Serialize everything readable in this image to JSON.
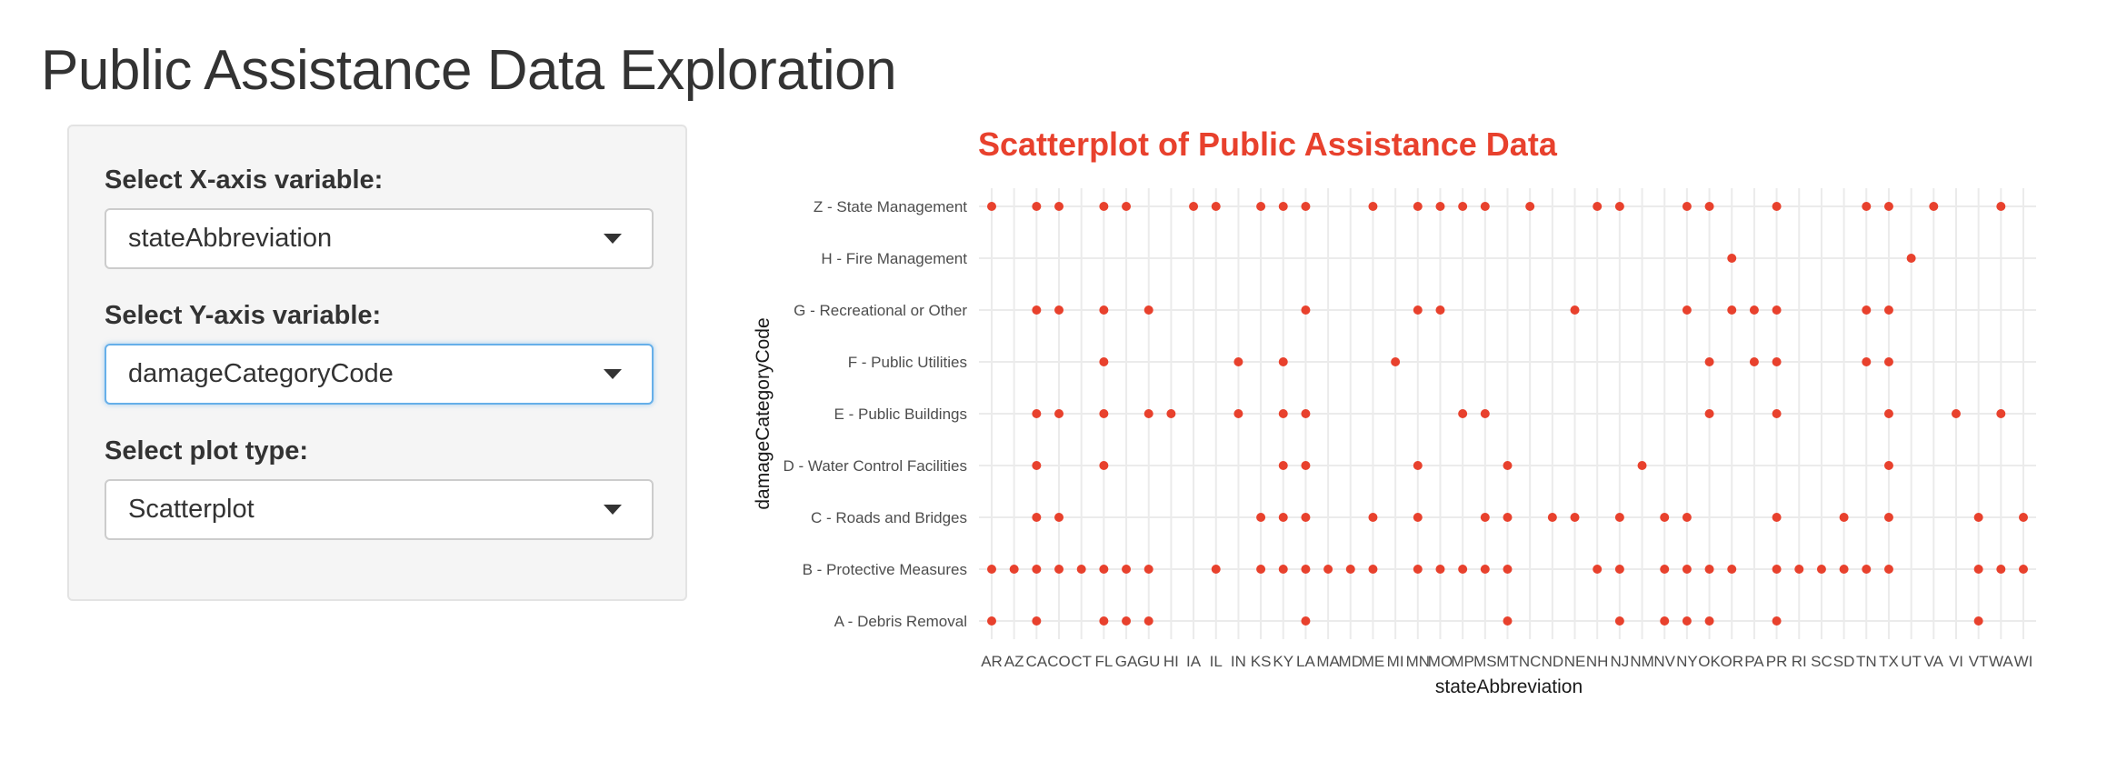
{
  "page": {
    "title": "Public Assistance Data Exploration"
  },
  "sidebar": {
    "x_select": {
      "label": "Select X-axis variable:",
      "value": "stateAbbreviation"
    },
    "y_select": {
      "label": "Select Y-axis variable:",
      "value": "damageCategoryCode"
    },
    "plot_type": {
      "label": "Select plot type:",
      "value": "Scatterplot"
    }
  },
  "colors": {
    "accent": "#e8412d",
    "focus_border": "#66afe9",
    "panel_bg": "#f5f5f5"
  },
  "chart_data": {
    "type": "scatter",
    "title": "Scatterplot of Public Assistance Data",
    "xlabel": "stateAbbreviation",
    "ylabel": "damageCategoryCode",
    "grid": true,
    "x_categories": [
      "AR",
      "AZ",
      "CA",
      "CO",
      "CT",
      "FL",
      "GA",
      "GU",
      "HI",
      "IA",
      "IL",
      "IN",
      "KS",
      "KY",
      "LA",
      "MA",
      "MD",
      "ME",
      "MI",
      "MN",
      "MO",
      "MP",
      "MS",
      "MT",
      "NC",
      "ND",
      "NE",
      "NH",
      "NJ",
      "NM",
      "NV",
      "NY",
      "OK",
      "OR",
      "PA",
      "PR",
      "RI",
      "SC",
      "SD",
      "TN",
      "TX",
      "UT",
      "VA",
      "VI",
      "VT",
      "WA",
      "WI"
    ],
    "x_tick_labels": [
      "AR",
      "AZ",
      "CA",
      "CO",
      "CT",
      "FL",
      "GA",
      "GU",
      "HI",
      "IA",
      "IL",
      "IN",
      "KS",
      "KY",
      "LA",
      "MA",
      "MD",
      "ME",
      "MI",
      "MN",
      "MO",
      "MP",
      "MS",
      "MT",
      "NC",
      "ND",
      "NE",
      "NH",
      "NJ",
      "NM",
      "NV",
      "NY",
      "OK",
      "OR",
      "PA",
      "PR",
      "RI",
      "SC",
      "SD",
      "TN",
      "TX",
      "UT",
      "VA",
      "VI",
      "VT",
      "WA",
      "WI"
    ],
    "y_categories": [
      "A - Debris Removal",
      "B - Protective Measures",
      "C - Roads and Bridges",
      "D - Water Control Facilities",
      "E - Public Buildings",
      "F - Public Utilities",
      "G - Recreational or Other",
      "H - Fire Management",
      "Z - State Management"
    ],
    "point_color": "#e8412d",
    "points": [
      {
        "x": "AR",
        "y": "Z - State Management"
      },
      {
        "x": "CA",
        "y": "Z - State Management"
      },
      {
        "x": "CO",
        "y": "Z - State Management"
      },
      {
        "x": "FL",
        "y": "Z - State Management"
      },
      {
        "x": "GA",
        "y": "Z - State Management"
      },
      {
        "x": "IA",
        "y": "Z - State Management"
      },
      {
        "x": "IL",
        "y": "Z - State Management"
      },
      {
        "x": "KS",
        "y": "Z - State Management"
      },
      {
        "x": "KY",
        "y": "Z - State Management"
      },
      {
        "x": "LA",
        "y": "Z - State Management"
      },
      {
        "x": "ME",
        "y": "Z - State Management"
      },
      {
        "x": "MN",
        "y": "Z - State Management"
      },
      {
        "x": "MO",
        "y": "Z - State Management"
      },
      {
        "x": "MP",
        "y": "Z - State Management"
      },
      {
        "x": "MS",
        "y": "Z - State Management"
      },
      {
        "x": "NC",
        "y": "Z - State Management"
      },
      {
        "x": "NH",
        "y": "Z - State Management"
      },
      {
        "x": "NJ",
        "y": "Z - State Management"
      },
      {
        "x": "NY",
        "y": "Z - State Management"
      },
      {
        "x": "OK",
        "y": "Z - State Management"
      },
      {
        "x": "PR",
        "y": "Z - State Management"
      },
      {
        "x": "TN",
        "y": "Z - State Management"
      },
      {
        "x": "TX",
        "y": "Z - State Management"
      },
      {
        "x": "VA",
        "y": "Z - State Management"
      },
      {
        "x": "WA",
        "y": "Z - State Management"
      },
      {
        "x": "OR",
        "y": "H - Fire Management"
      },
      {
        "x": "UT",
        "y": "H - Fire Management"
      },
      {
        "x": "CA",
        "y": "G - Recreational or Other"
      },
      {
        "x": "CO",
        "y": "G - Recreational or Other"
      },
      {
        "x": "FL",
        "y": "G - Recreational or Other"
      },
      {
        "x": "GU",
        "y": "G - Recreational or Other"
      },
      {
        "x": "LA",
        "y": "G - Recreational or Other"
      },
      {
        "x": "MN",
        "y": "G - Recreational or Other"
      },
      {
        "x": "MO",
        "y": "G - Recreational or Other"
      },
      {
        "x": "NE",
        "y": "G - Recreational or Other"
      },
      {
        "x": "NY",
        "y": "G - Recreational or Other"
      },
      {
        "x": "OR",
        "y": "G - Recreational or Other"
      },
      {
        "x": "PA",
        "y": "G - Recreational or Other"
      },
      {
        "x": "PR",
        "y": "G - Recreational or Other"
      },
      {
        "x": "TN",
        "y": "G - Recreational or Other"
      },
      {
        "x": "TX",
        "y": "G - Recreational or Other"
      },
      {
        "x": "FL",
        "y": "F - Public Utilities"
      },
      {
        "x": "IN",
        "y": "F - Public Utilities"
      },
      {
        "x": "KY",
        "y": "F - Public Utilities"
      },
      {
        "x": "MI",
        "y": "F - Public Utilities"
      },
      {
        "x": "OK",
        "y": "F - Public Utilities"
      },
      {
        "x": "PA",
        "y": "F - Public Utilities"
      },
      {
        "x": "PR",
        "y": "F - Public Utilities"
      },
      {
        "x": "TN",
        "y": "F - Public Utilities"
      },
      {
        "x": "TX",
        "y": "F - Public Utilities"
      },
      {
        "x": "CA",
        "y": "E - Public Buildings"
      },
      {
        "x": "CO",
        "y": "E - Public Buildings"
      },
      {
        "x": "FL",
        "y": "E - Public Buildings"
      },
      {
        "x": "GU",
        "y": "E - Public Buildings"
      },
      {
        "x": "HI",
        "y": "E - Public Buildings"
      },
      {
        "x": "IN",
        "y": "E - Public Buildings"
      },
      {
        "x": "KY",
        "y": "E - Public Buildings"
      },
      {
        "x": "LA",
        "y": "E - Public Buildings"
      },
      {
        "x": "MP",
        "y": "E - Public Buildings"
      },
      {
        "x": "MS",
        "y": "E - Public Buildings"
      },
      {
        "x": "OK",
        "y": "E - Public Buildings"
      },
      {
        "x": "PR",
        "y": "E - Public Buildings"
      },
      {
        "x": "TX",
        "y": "E - Public Buildings"
      },
      {
        "x": "VI",
        "y": "E - Public Buildings"
      },
      {
        "x": "WA",
        "y": "E - Public Buildings"
      },
      {
        "x": "CA",
        "y": "D - Water Control Facilities"
      },
      {
        "x": "FL",
        "y": "D - Water Control Facilities"
      },
      {
        "x": "KY",
        "y": "D - Water Control Facilities"
      },
      {
        "x": "LA",
        "y": "D - Water Control Facilities"
      },
      {
        "x": "MN",
        "y": "D - Water Control Facilities"
      },
      {
        "x": "MT",
        "y": "D - Water Control Facilities"
      },
      {
        "x": "NM",
        "y": "D - Water Control Facilities"
      },
      {
        "x": "TX",
        "y": "D - Water Control Facilities"
      },
      {
        "x": "CA",
        "y": "C - Roads and Bridges"
      },
      {
        "x": "CO",
        "y": "C - Roads and Bridges"
      },
      {
        "x": "KS",
        "y": "C - Roads and Bridges"
      },
      {
        "x": "KY",
        "y": "C - Roads and Bridges"
      },
      {
        "x": "LA",
        "y": "C - Roads and Bridges"
      },
      {
        "x": "ME",
        "y": "C - Roads and Bridges"
      },
      {
        "x": "MN",
        "y": "C - Roads and Bridges"
      },
      {
        "x": "MS",
        "y": "C - Roads and Bridges"
      },
      {
        "x": "MT",
        "y": "C - Roads and Bridges"
      },
      {
        "x": "ND",
        "y": "C - Roads and Bridges"
      },
      {
        "x": "NE",
        "y": "C - Roads and Bridges"
      },
      {
        "x": "NJ",
        "y": "C - Roads and Bridges"
      },
      {
        "x": "NV",
        "y": "C - Roads and Bridges"
      },
      {
        "x": "NY",
        "y": "C - Roads and Bridges"
      },
      {
        "x": "PR",
        "y": "C - Roads and Bridges"
      },
      {
        "x": "SD",
        "y": "C - Roads and Bridges"
      },
      {
        "x": "TX",
        "y": "C - Roads and Bridges"
      },
      {
        "x": "VT",
        "y": "C - Roads and Bridges"
      },
      {
        "x": "WI",
        "y": "C - Roads and Bridges"
      },
      {
        "x": "AR",
        "y": "B - Protective Measures"
      },
      {
        "x": "AZ",
        "y": "B - Protective Measures"
      },
      {
        "x": "CA",
        "y": "B - Protective Measures"
      },
      {
        "x": "CO",
        "y": "B - Protective Measures"
      },
      {
        "x": "CT",
        "y": "B - Protective Measures"
      },
      {
        "x": "FL",
        "y": "B - Protective Measures"
      },
      {
        "x": "GA",
        "y": "B - Protective Measures"
      },
      {
        "x": "GU",
        "y": "B - Protective Measures"
      },
      {
        "x": "IL",
        "y": "B - Protective Measures"
      },
      {
        "x": "KS",
        "y": "B - Protective Measures"
      },
      {
        "x": "KY",
        "y": "B - Protective Measures"
      },
      {
        "x": "LA",
        "y": "B - Protective Measures"
      },
      {
        "x": "MA",
        "y": "B - Protective Measures"
      },
      {
        "x": "MD",
        "y": "B - Protective Measures"
      },
      {
        "x": "ME",
        "y": "B - Protective Measures"
      },
      {
        "x": "MN",
        "y": "B - Protective Measures"
      },
      {
        "x": "MO",
        "y": "B - Protective Measures"
      },
      {
        "x": "MP",
        "y": "B - Protective Measures"
      },
      {
        "x": "MS",
        "y": "B - Protective Measures"
      },
      {
        "x": "MT",
        "y": "B - Protective Measures"
      },
      {
        "x": "NH",
        "y": "B - Protective Measures"
      },
      {
        "x": "NJ",
        "y": "B - Protective Measures"
      },
      {
        "x": "NV",
        "y": "B - Protective Measures"
      },
      {
        "x": "NY",
        "y": "B - Protective Measures"
      },
      {
        "x": "OK",
        "y": "B - Protective Measures"
      },
      {
        "x": "OR",
        "y": "B - Protective Measures"
      },
      {
        "x": "PR",
        "y": "B - Protective Measures"
      },
      {
        "x": "RI",
        "y": "B - Protective Measures"
      },
      {
        "x": "SC",
        "y": "B - Protective Measures"
      },
      {
        "x": "SD",
        "y": "B - Protective Measures"
      },
      {
        "x": "TN",
        "y": "B - Protective Measures"
      },
      {
        "x": "TX",
        "y": "B - Protective Measures"
      },
      {
        "x": "VT",
        "y": "B - Protective Measures"
      },
      {
        "x": "WA",
        "y": "B - Protective Measures"
      },
      {
        "x": "WI",
        "y": "B - Protective Measures"
      },
      {
        "x": "AR",
        "y": "A - Debris Removal"
      },
      {
        "x": "CA",
        "y": "A - Debris Removal"
      },
      {
        "x": "FL",
        "y": "A - Debris Removal"
      },
      {
        "x": "GA",
        "y": "A - Debris Removal"
      },
      {
        "x": "GU",
        "y": "A - Debris Removal"
      },
      {
        "x": "LA",
        "y": "A - Debris Removal"
      },
      {
        "x": "MT",
        "y": "A - Debris Removal"
      },
      {
        "x": "NJ",
        "y": "A - Debris Removal"
      },
      {
        "x": "NV",
        "y": "A - Debris Removal"
      },
      {
        "x": "NY",
        "y": "A - Debris Removal"
      },
      {
        "x": "OK",
        "y": "A - Debris Removal"
      },
      {
        "x": "PR",
        "y": "A - Debris Removal"
      },
      {
        "x": "VT",
        "y": "A - Debris Removal"
      }
    ]
  }
}
